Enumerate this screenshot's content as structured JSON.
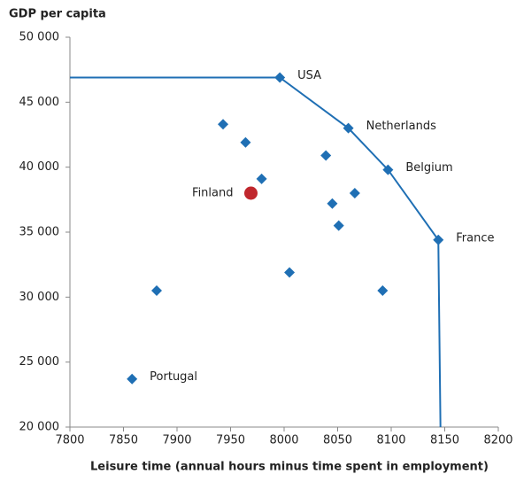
{
  "chart_data": {
    "type": "scatter",
    "title": "GDP per capita",
    "xlabel": "Leisure time (annual hours minus time spent in employment)",
    "xlim": [
      7800,
      8200
    ],
    "xticks": [
      7800,
      7850,
      7900,
      7950,
      8000,
      8050,
      8100,
      8150,
      8200
    ],
    "ylim": [
      20000,
      50000
    ],
    "yticks": [
      {
        "value": 20000,
        "label": "20 000"
      },
      {
        "value": 25000,
        "label": "25 000"
      },
      {
        "value": 30000,
        "label": "30 000"
      },
      {
        "value": 35000,
        "label": "35 000"
      },
      {
        "value": 40000,
        "label": "40 000"
      },
      {
        "value": 45000,
        "label": "45 000"
      },
      {
        "value": 50000,
        "label": "50 000"
      }
    ],
    "frontier": {
      "color": "#1f6fb4",
      "x": [
        7800,
        7996,
        8060,
        8097,
        8144,
        8146
      ],
      "values": [
        46900,
        46900,
        43000,
        39800,
        34400,
        20000
      ]
    },
    "points": {
      "color": "#1f6fb4",
      "x": [
        7996,
        8060,
        8097,
        8144,
        7858,
        7943,
        7964,
        7979,
        8039,
        8066,
        8045,
        8051,
        8005,
        7881,
        8092
      ],
      "values": [
        46900,
        43000,
        39800,
        34400,
        23700,
        43300,
        41900,
        39100,
        40900,
        38000,
        37200,
        35500,
        31900,
        30500,
        30500
      ],
      "labels": [
        "USA",
        "Netherlands",
        "Belgium",
        "France",
        "Portugal",
        null,
        null,
        null,
        null,
        null,
        null,
        null,
        null,
        null,
        null
      ]
    },
    "highlight": {
      "color": "#c0272d",
      "x": [
        7969
      ],
      "values": [
        38000
      ],
      "labels": [
        "Finland"
      ]
    }
  }
}
